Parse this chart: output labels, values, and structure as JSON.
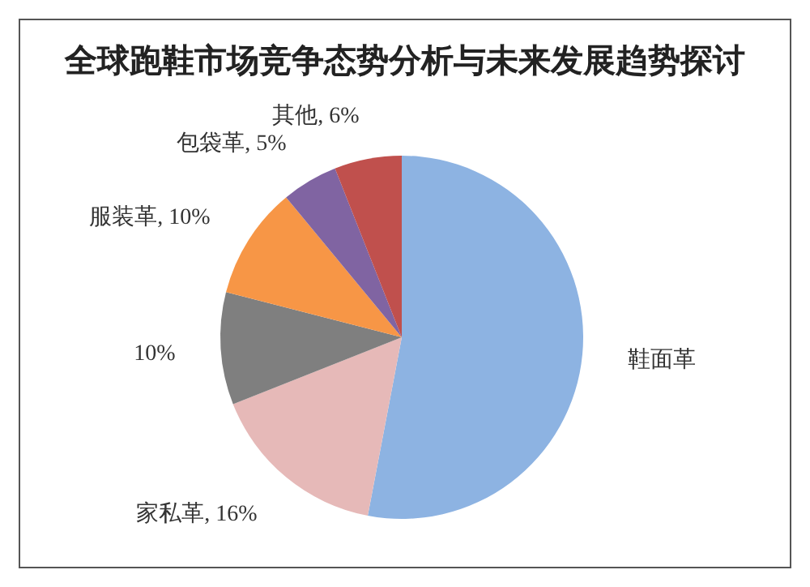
{
  "chart_data": {
    "type": "pie",
    "title": "全球跑鞋市场竞争态势分析与未来发展趋势探讨",
    "categories": [
      "鞋面革",
      "家私革",
      null,
      "服装革",
      "包袋革",
      "其他"
    ],
    "values": [
      53,
      16,
      10,
      10,
      5,
      6
    ],
    "value_labels": [
      null,
      "16%",
      "10%",
      "10%",
      "5%",
      "6%"
    ],
    "colors": [
      "#8db3e2",
      "#e6b9b8",
      "#7f7f7f",
      "#f79646",
      "#8064a2",
      "#c0504d"
    ],
    "legend": false
  }
}
